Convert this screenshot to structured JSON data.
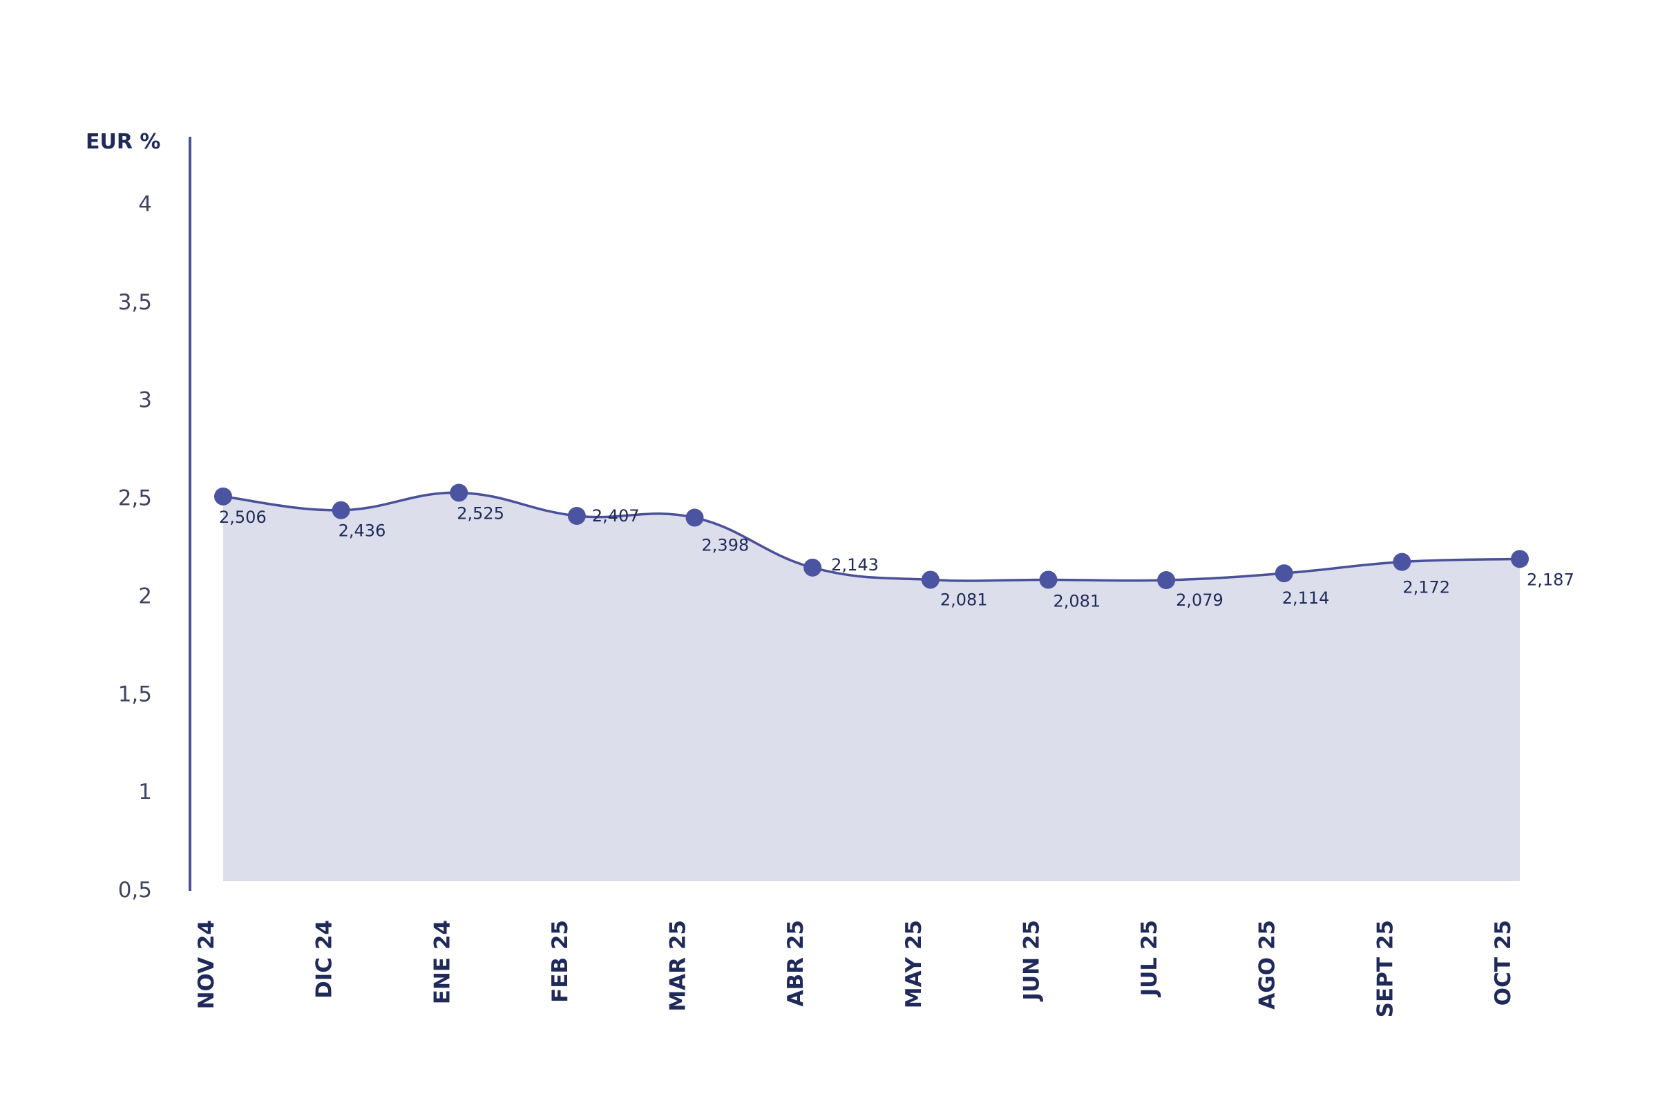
{
  "chart_data": {
    "type": "area",
    "title": "",
    "unit_label": "EUR %",
    "xlabel": "",
    "ylabel": "",
    "ylim": [
      0.5,
      4
    ],
    "yticks": [
      "4",
      "3,5",
      "3",
      "2,5",
      "2",
      "1,5",
      "1",
      "0,5"
    ],
    "ytick_values": [
      4,
      3.5,
      3,
      2.5,
      2,
      1.5,
      1,
      0.5
    ],
    "categories": [
      "NOV 24",
      "DIC 24",
      "ENE 24",
      "FEB 25",
      "MAR 25",
      "ABR 25",
      "MAY 25",
      "JUN 25",
      "JUL 25",
      "AGO 25",
      "SEPT 25",
      "OCT 25"
    ],
    "values": [
      2.506,
      2.436,
      2.525,
      2.407,
      2.398,
      2.143,
      2.081,
      2.081,
      2.079,
      2.114,
      2.172,
      2.187
    ],
    "value_labels": [
      "2,506",
      "2,436",
      "2,525",
      "2,407",
      "2,398",
      "2,143",
      "2,081",
      "2,081",
      "2,079",
      "2,114",
      "2,172",
      "2,187"
    ],
    "grid": false,
    "legend": "none"
  },
  "colors": {
    "line": "#4a5099",
    "marker": "#4a54a0",
    "fill": "#dcdeeb",
    "axis": "#4a5099",
    "text": "#1f2a5a"
  }
}
